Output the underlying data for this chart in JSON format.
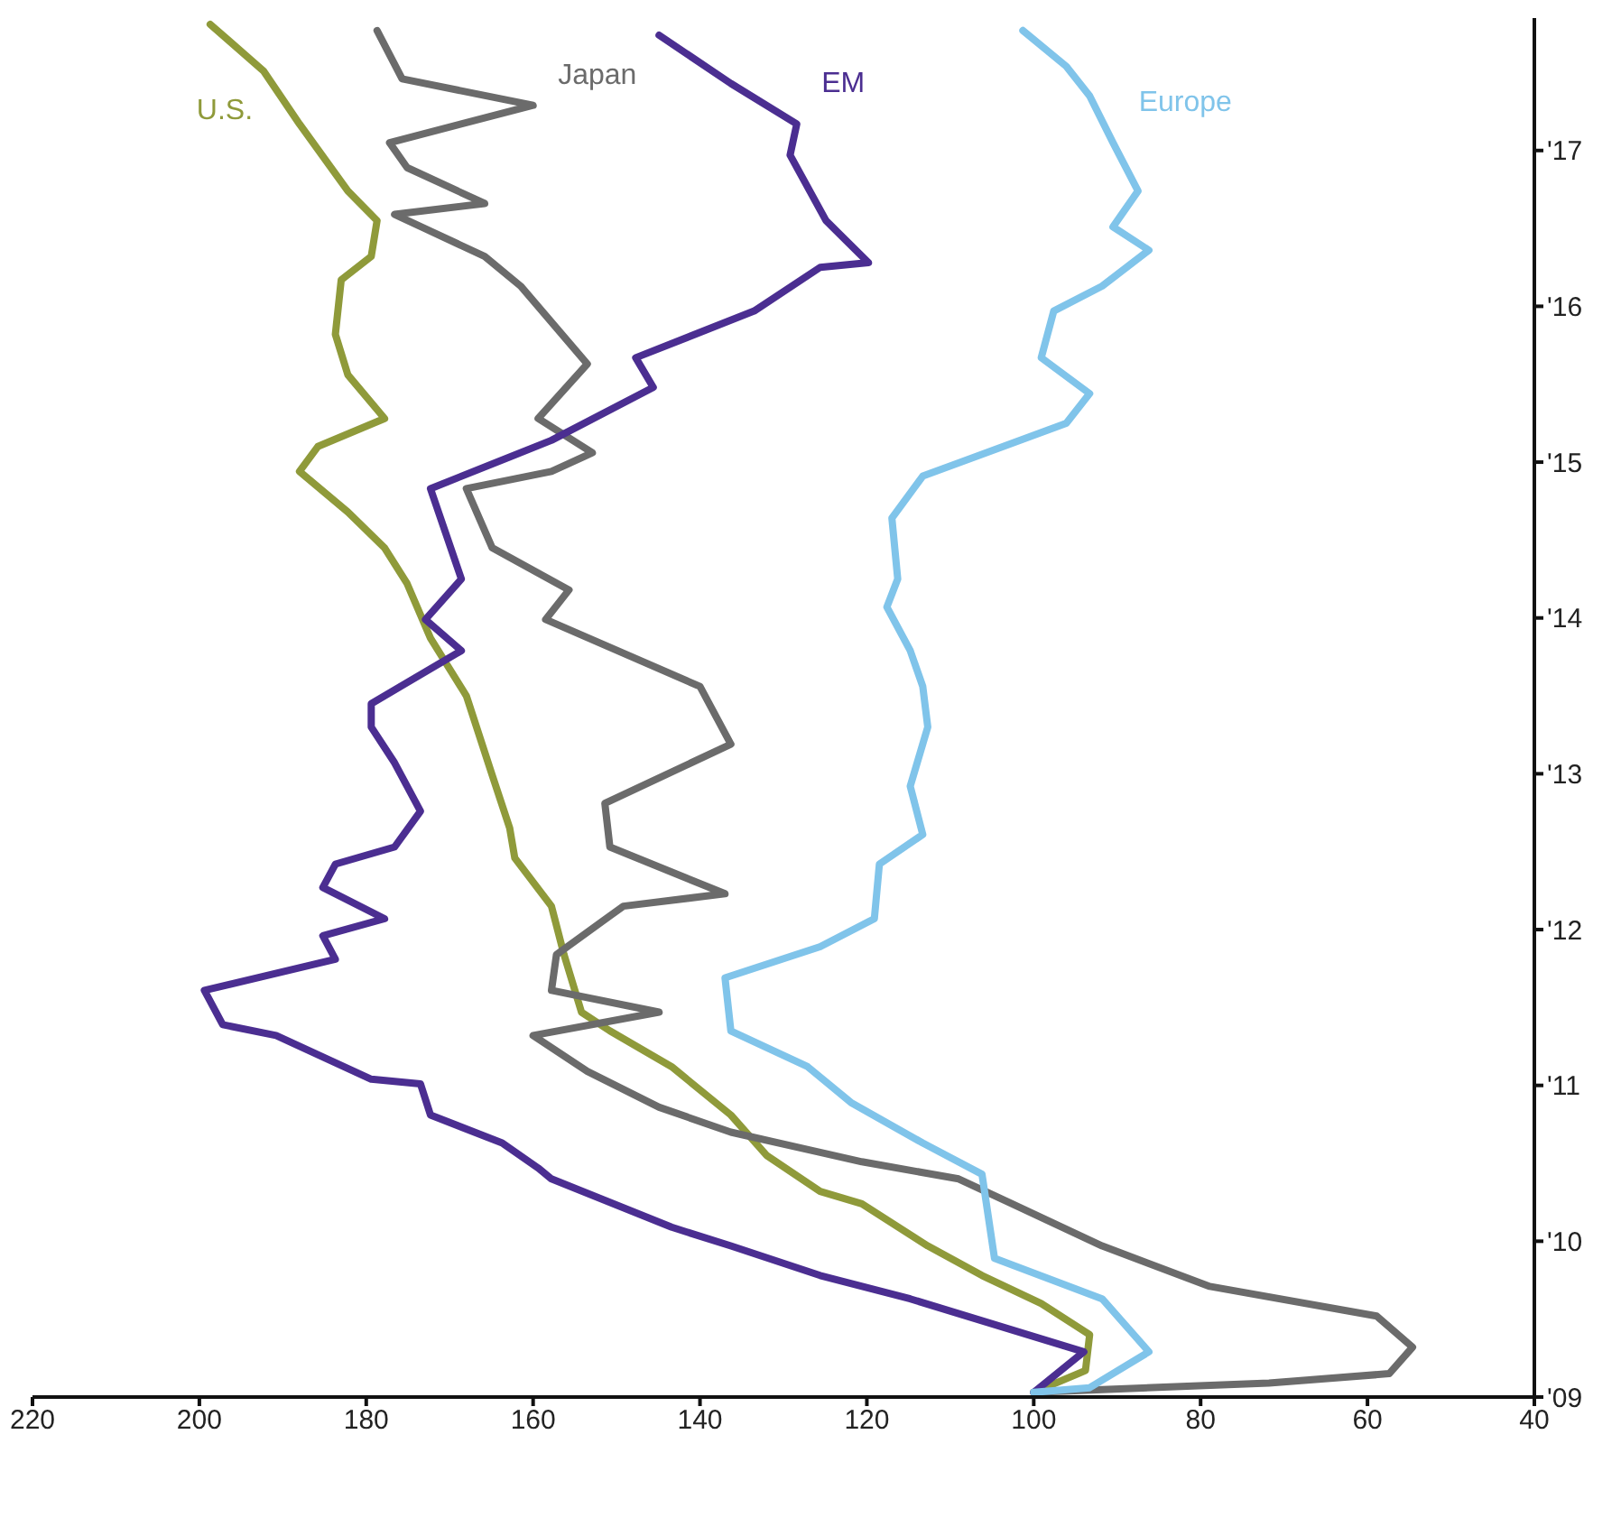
{
  "chart_data": {
    "type": "line",
    "orientation": "horizontal",
    "ylim": [
      2009,
      2017.85
    ],
    "yticks": [
      {
        "value": 2009,
        "label": "'09"
      },
      {
        "value": 2010,
        "label": "'10"
      },
      {
        "value": 2011,
        "label": "'11"
      },
      {
        "value": 2012,
        "label": "'12"
      },
      {
        "value": 2013,
        "label": "'13"
      },
      {
        "value": 2014,
        "label": "'14"
      },
      {
        "value": 2015,
        "label": "'15"
      },
      {
        "value": 2016,
        "label": "'16"
      },
      {
        "value": 2017,
        "label": "'17"
      }
    ],
    "xlim": [
      220,
      40
    ],
    "xticks": [
      220,
      200,
      180,
      160,
      140,
      120,
      100,
      80,
      60,
      40
    ],
    "grid": false,
    "marker": "none",
    "line_style": "solid",
    "series": [
      {
        "name": "U.S.",
        "color": "#8f9a3a",
        "x": [
          2009.03,
          2009.17,
          2009.4,
          2009.6,
          2009.78,
          2009.97,
          2010.24,
          2010.32,
          2010.55,
          2010.81,
          2011.12,
          2011.35,
          2011.47,
          2011.84,
          2012.15,
          2012.46,
          2012.65,
          2012.99,
          2013.5,
          2013.87,
          2014.22,
          2014.45,
          2014.68,
          2014.94,
          2015.1,
          2015.28,
          2015.56,
          2015.82,
          2016.17,
          2016.32,
          2016.55,
          2016.74,
          2017.17,
          2017.51,
          2017.81
        ],
        "values": [
          100,
          93.8,
          93.3,
          99.1,
          106.2,
          112.7,
          120.6,
          125.6,
          132,
          136.3,
          143.4,
          150.8,
          154.2,
          156.3,
          157.8,
          162.2,
          162.8,
          164.9,
          168,
          172.3,
          175.1,
          177.8,
          182.2,
          188,
          185.8,
          177.8,
          182.2,
          183.7,
          183,
          179.4,
          178.7,
          182.2,
          188,
          192.3,
          198.7
        ]
      },
      {
        "name": "Japan",
        "color": "#6b6b6b",
        "x": [
          2009.03,
          2009.09,
          2009.15,
          2009.32,
          2009.52,
          2009.71,
          2009.97,
          2010.24,
          2010.4,
          2010.51,
          2010.57,
          2010.7,
          2010.86,
          2011.09,
          2011.32,
          2011.47,
          2011.61,
          2011.84,
          2012.15,
          2012.23,
          2012.53,
          2012.81,
          2013.19,
          2013.56,
          2013.99,
          2014.18,
          2014.45,
          2014.83,
          2014.94,
          2015.06,
          2015.28,
          2015.63,
          2016.13,
          2016.32,
          2016.59,
          2016.66,
          2016.89,
          2017.05,
          2017.29,
          2017.46,
          2017.77
        ],
        "values": [
          100,
          71.8,
          57.4,
          54.6,
          58.9,
          78.9,
          91.8,
          102.6,
          109,
          120.6,
          125.6,
          136.3,
          144.9,
          153.5,
          160,
          144.9,
          157.8,
          157.2,
          149.2,
          137,
          150.8,
          151.4,
          136.3,
          140,
          158.5,
          155.7,
          164.9,
          168,
          157.8,
          152.9,
          159.4,
          153.5,
          161.5,
          165.8,
          176.6,
          165.8,
          175.1,
          177.2,
          160,
          175.7,
          178.7
        ]
      },
      {
        "name": "EM",
        "color": "#4b2e91",
        "x": [
          2009.03,
          2009.29,
          2009.63,
          2009.78,
          2009.97,
          2010.09,
          2010.4,
          2010.47,
          2010.63,
          2010.81,
          2011.01,
          2011.04,
          2011.32,
          2011.39,
          2011.61,
          2011.81,
          2011.96,
          2012.07,
          2012.27,
          2012.42,
          2012.53,
          2012.76,
          2013.07,
          2013.3,
          2013.45,
          2013.79,
          2013.99,
          2014.25,
          2014.83,
          2015.14,
          2015.48,
          2015.67,
          2015.97,
          2016.25,
          2016.28,
          2016.55,
          2016.97,
          2017.17,
          2017.43,
          2017.74
        ],
        "values": [
          100,
          94,
          114.8,
          125.6,
          136.3,
          143.4,
          157.8,
          159.4,
          163.7,
          172.3,
          173.5,
          179.4,
          190.8,
          197.2,
          199.4,
          183.7,
          185.2,
          177.8,
          185.2,
          183.7,
          176.6,
          173.5,
          176.6,
          179.4,
          179.4,
          168.6,
          172.9,
          168.6,
          172.3,
          157.8,
          145.6,
          147.7,
          133.5,
          125.6,
          119.8,
          124.9,
          129.2,
          128.4,
          136.3,
          144.9
        ]
      },
      {
        "name": "Europe",
        "color": "#80c4ea",
        "x": [
          2009.03,
          2009.06,
          2009.29,
          2009.63,
          2009.89,
          2010.43,
          2010.63,
          2010.89,
          2011.12,
          2011.35,
          2011.69,
          2011.89,
          2012.07,
          2012.42,
          2012.61,
          2012.92,
          2013.3,
          2013.56,
          2013.79,
          2014.07,
          2014.25,
          2014.64,
          2014.91,
          2015.25,
          2015.44,
          2015.67,
          2015.97,
          2016.13,
          2016.36,
          2016.51,
          2016.74,
          2017.05,
          2017.35,
          2017.54,
          2017.77
        ],
        "values": [
          100,
          93.3,
          86.2,
          91.8,
          104.7,
          106.2,
          113.3,
          121.9,
          127.1,
          136.3,
          137,
          125.6,
          119.1,
          118.5,
          113.3,
          114.8,
          112.7,
          113.3,
          114.8,
          117.6,
          116.3,
          117,
          113.3,
          96.1,
          93.3,
          99.1,
          97.6,
          91.8,
          86.2,
          90.5,
          87.5,
          90.5,
          93.3,
          96.1,
          101.3
        ]
      }
    ]
  }
}
